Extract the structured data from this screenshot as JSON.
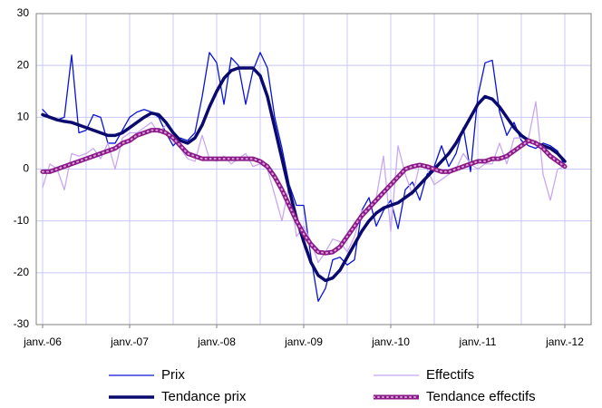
{
  "chart_data": {
    "type": "line",
    "categories": [
      "janv.-06",
      null,
      null,
      null,
      null,
      null,
      null,
      null,
      null,
      null,
      null,
      null,
      "janv.-07",
      null,
      null,
      null,
      null,
      null,
      null,
      null,
      null,
      null,
      null,
      null,
      "janv.-08",
      null,
      null,
      null,
      null,
      null,
      null,
      null,
      null,
      null,
      null,
      null,
      "janv.-09",
      null,
      null,
      null,
      null,
      null,
      null,
      null,
      null,
      null,
      null,
      null,
      "janv.-10",
      null,
      null,
      null,
      null,
      null,
      null,
      null,
      null,
      null,
      null,
      null,
      "janv.-11",
      null,
      null,
      null,
      null,
      null,
      null,
      null,
      null,
      null,
      null,
      null,
      "janv.-12"
    ],
    "ylim": [
      -30,
      30
    ],
    "yticks": [
      -30,
      -20,
      -10,
      0,
      10,
      20,
      30
    ],
    "grid": true,
    "legend": "bottom",
    "series": [
      {
        "name": "Prix",
        "color": "#0a14d2",
        "width": 1.3,
        "values": [
          11.5,
          10,
          9.5,
          10,
          22,
          7,
          7.5,
          10.5,
          10,
          5,
          5,
          7.5,
          10,
          11,
          11.5,
          11,
          10,
          7,
          4.5,
          6,
          5.5,
          7,
          14,
          22.5,
          20.5,
          12.5,
          21.5,
          20,
          12.5,
          19,
          22.5,
          19.5,
          10,
          4,
          -3,
          -7,
          -7,
          -17,
          -25.5,
          -23,
          -17.5,
          -17,
          -18.5,
          -17.5,
          -8,
          -5.5,
          -11,
          -8,
          -6,
          -11.5,
          -4,
          -2.5,
          -6,
          -1,
          0.5,
          4.5,
          0.5,
          3,
          8,
          -0.5,
          14,
          20.5,
          21,
          11,
          6.5,
          9,
          5.5,
          4.5,
          4,
          5,
          4.5,
          3.5,
          0.5
        ]
      },
      {
        "name": "Effectifs",
        "color": "#c8a8f0",
        "width": 1.3,
        "values": [
          -3.5,
          1,
          0,
          -4,
          3,
          2.5,
          3,
          4,
          2,
          5,
          0,
          6,
          7,
          7,
          8,
          9,
          7,
          8.5,
          7,
          4,
          2,
          1.5,
          6.5,
          2,
          1.5,
          2.5,
          1,
          2,
          3,
          0.5,
          1,
          0,
          -5,
          -10,
          -3,
          -13,
          -11,
          -14,
          -18,
          -16,
          -13.5,
          -14,
          -16,
          -13,
          -8,
          -8,
          -5.5,
          2.5,
          -12,
          4.5,
          -1,
          -5,
          1,
          0,
          -3,
          -2,
          -1,
          0,
          3,
          1,
          0,
          1,
          1,
          5,
          1,
          6,
          6,
          6,
          13,
          -1,
          -6,
          0,
          0.5
        ]
      },
      {
        "name": "Tendance prix",
        "color": "#0a0a6e",
        "width": 3.5,
        "values": [
          10.5,
          10,
          9.5,
          9.2,
          9,
          8.5,
          8,
          7.5,
          7,
          6.5,
          6.5,
          7,
          8,
          9,
          10,
          10.8,
          10.5,
          9,
          7,
          5.5,
          5,
          6,
          8.5,
          12,
          15,
          17.5,
          19,
          19.5,
          19.5,
          19.5,
          18,
          14,
          8,
          2,
          -4,
          -9.5,
          -14,
          -18,
          -20.5,
          -21.5,
          -21,
          -19.5,
          -17,
          -14.5,
          -12,
          -10,
          -8.5,
          -7.5,
          -7,
          -6.5,
          -5.5,
          -4.5,
          -3,
          -1.5,
          0,
          1.5,
          3,
          5,
          7.5,
          10,
          12.5,
          14,
          13.5,
          12,
          10,
          8,
          6.5,
          5.5,
          5,
          4.5,
          4,
          3,
          1.5
        ]
      },
      {
        "name": "Tendance effectifs",
        "color": "#8b1a89",
        "width": 5,
        "dotted": true,
        "values": [
          -0.5,
          -0.5,
          0,
          0.5,
          1,
          1.5,
          2,
          2.5,
          3,
          3.5,
          4,
          5,
          5.5,
          6.5,
          7,
          7.5,
          7.5,
          7,
          6,
          4.5,
          3,
          2.5,
          2,
          2,
          2,
          2,
          2,
          2,
          2,
          2,
          1.5,
          0.5,
          -1.5,
          -4,
          -7,
          -10,
          -12.5,
          -14.5,
          -16,
          -16.2,
          -16,
          -15,
          -13,
          -11,
          -9,
          -7.5,
          -6,
          -4.5,
          -3,
          -1.5,
          0,
          0.5,
          0.8,
          0.5,
          0,
          -0.5,
          -0.5,
          0,
          0.5,
          1,
          1.5,
          1.5,
          2,
          2,
          2.5,
          3.5,
          4.5,
          5.5,
          5,
          4,
          2.5,
          1.5,
          0.5
        ]
      }
    ]
  }
}
